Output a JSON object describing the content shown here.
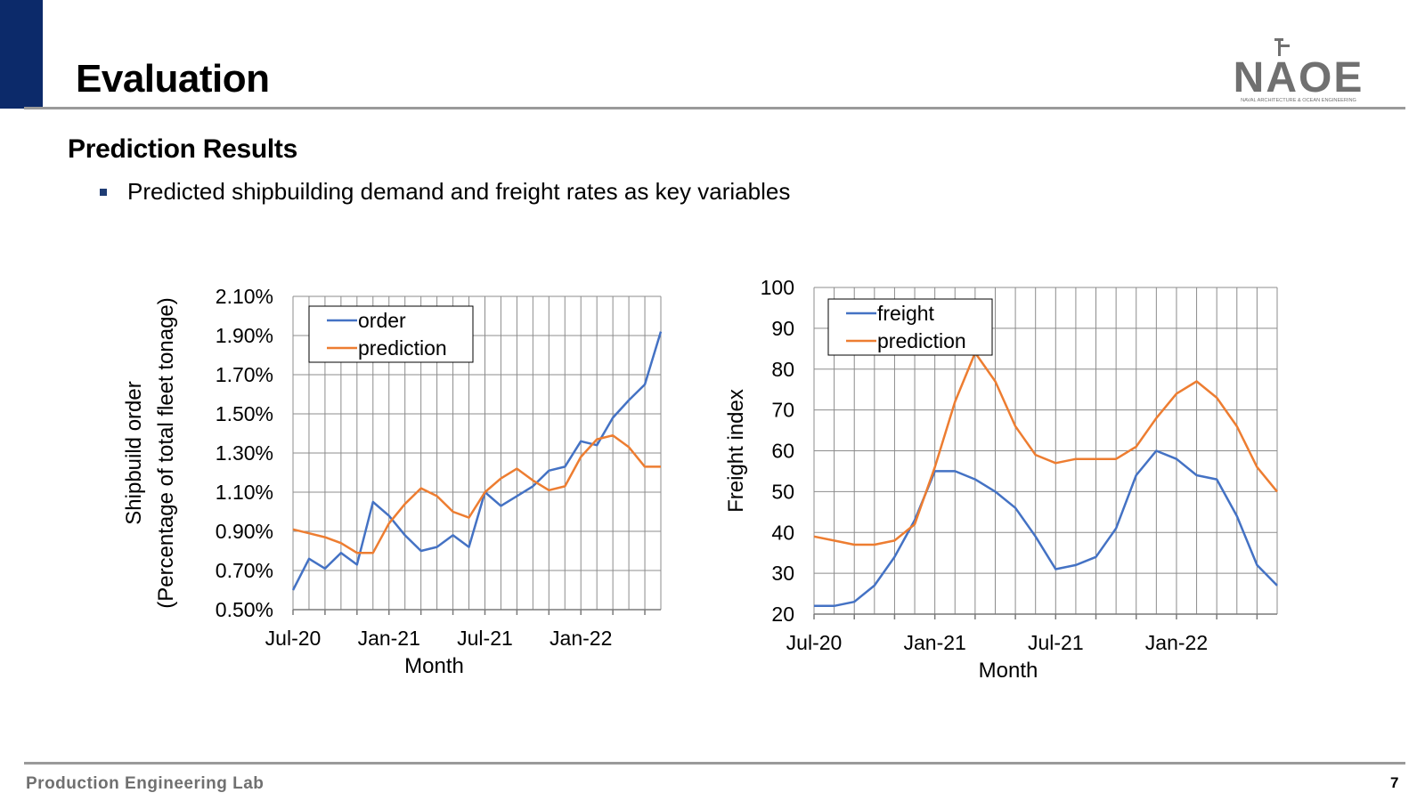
{
  "slide": {
    "title": "Evaluation",
    "section_heading": "Prediction Results",
    "bullet": "Predicted shipbuilding demand and freight rates as key variables",
    "footer_lab": "Production Engineering Lab",
    "page_number": "7"
  },
  "logo": {
    "text": "NAOE",
    "subtitle": "NAVAL ARCHITECTURE & OCEAN ENGINEERING"
  },
  "colors": {
    "accent_bar": "#0c2a6a",
    "rule": "#9a9a9a",
    "series_blue": "#4472c4",
    "series_orange": "#ed7d31"
  },
  "chart_data": [
    {
      "type": "line",
      "xlabel": "Month",
      "ylabel_lines": [
        "Shipbuild order",
        "(Percentage of total fleet tonage)"
      ],
      "x_tick_labels": [
        "Jul-20",
        "Jan-21",
        "Jul-21",
        "Jan-22"
      ],
      "x_tick_indices": [
        0,
        6,
        12,
        18
      ],
      "y_ticks": [
        0.5,
        0.7,
        0.9,
        1.1,
        1.3,
        1.5,
        1.7,
        1.9,
        2.1
      ],
      "y_tick_labels": [
        "0.50%",
        "0.70%",
        "0.90%",
        "1.10%",
        "1.30%",
        "1.50%",
        "1.70%",
        "1.90%",
        "2.10%"
      ],
      "ylim": [
        0.5,
        2.1
      ],
      "n_points": 24,
      "grid": true,
      "legend_position": "top-left",
      "series": [
        {
          "name": "order",
          "color": "#4472c4",
          "values": [
            0.6,
            0.76,
            0.71,
            0.79,
            0.73,
            1.05,
            0.98,
            0.88,
            0.8,
            0.82,
            0.88,
            0.82,
            1.1,
            1.03,
            1.08,
            1.13,
            1.21,
            1.23,
            1.36,
            1.34,
            1.48,
            1.57,
            1.65,
            1.92
          ]
        },
        {
          "name": "prediction",
          "color": "#ed7d31",
          "values": [
            0.91,
            0.89,
            0.87,
            0.84,
            0.79,
            0.79,
            0.94,
            1.04,
            1.12,
            1.08,
            1.0,
            0.97,
            1.1,
            1.17,
            1.22,
            1.16,
            1.11,
            1.13,
            1.28,
            1.37,
            1.39,
            1.33,
            1.23,
            1.23
          ]
        }
      ]
    },
    {
      "type": "line",
      "xlabel": "Month",
      "ylabel_lines": [
        "Freight index"
      ],
      "x_tick_labels": [
        "Jul-20",
        "Jan-21",
        "Jul-21",
        "Jan-22"
      ],
      "x_tick_indices": [
        0,
        6,
        12,
        18
      ],
      "y_ticks": [
        20,
        30,
        40,
        50,
        60,
        70,
        80,
        90,
        100
      ],
      "y_tick_labels": [
        "20",
        "30",
        "40",
        "50",
        "60",
        "70",
        "80",
        "90",
        "100"
      ],
      "ylim": [
        20,
        100
      ],
      "n_points": 24,
      "grid": true,
      "legend_position": "top-left",
      "series": [
        {
          "name": "freight",
          "color": "#4472c4",
          "values": [
            22,
            22,
            23,
            27,
            34,
            43,
            55,
            55,
            53,
            50,
            46,
            39,
            31,
            32,
            34,
            41,
            54,
            60,
            58,
            54,
            53,
            44,
            32,
            27
          ]
        },
        {
          "name": "prediction",
          "color": "#ed7d31",
          "values": [
            39,
            38,
            37,
            37,
            38,
            42,
            56,
            72,
            84,
            77,
            66,
            59,
            57,
            58,
            58,
            58,
            61,
            68,
            74,
            77,
            73,
            66,
            56,
            50
          ]
        }
      ]
    }
  ]
}
